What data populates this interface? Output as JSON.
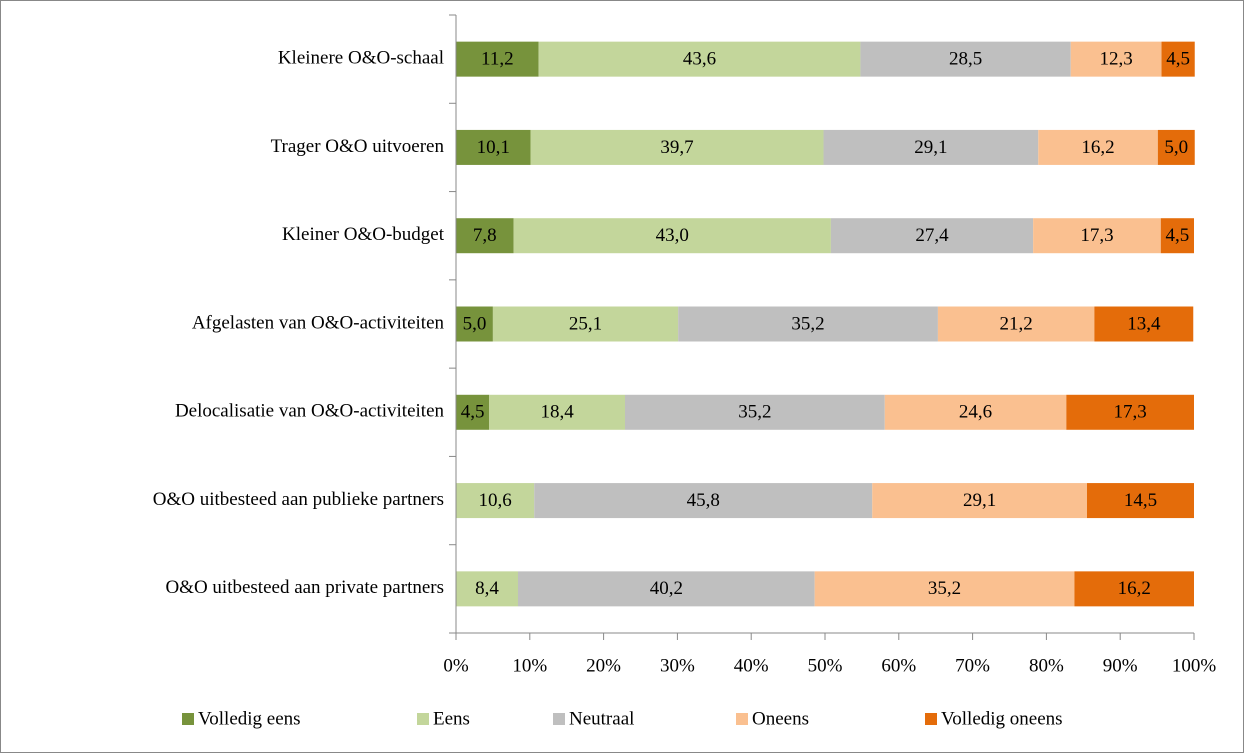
{
  "chart_data": {
    "type": "stacked_bar_horizontal",
    "categories": [
      "Kleinere O&O-schaal",
      "Trager O&O uitvoeren",
      "Kleiner O&O-budget",
      "Afgelasten van O&O-activiteiten",
      "Delocalisatie van O&O-activiteiten",
      "O&O uitbesteed aan publieke partners",
      "O&O uitbesteed aan private partners"
    ],
    "series": [
      {
        "name": "Volledig eens",
        "color": "#77933c",
        "values": [
          11.2,
          10.1,
          7.8,
          5.0,
          4.5,
          null,
          null
        ],
        "value_labels": [
          "11,2",
          "10,1",
          "7,8",
          "5,0",
          "4,5",
          null,
          null
        ]
      },
      {
        "name": "Eens",
        "color": "#c3d69b",
        "values": [
          43.6,
          39.7,
          43.0,
          25.1,
          18.4,
          10.6,
          8.4
        ],
        "value_labels": [
          "43,6",
          "39,7",
          "43,0",
          "25,1",
          "18,4",
          "10,6",
          "8,4"
        ]
      },
      {
        "name": "Neutraal",
        "color": "#bfbfbf",
        "values": [
          28.5,
          29.1,
          27.4,
          35.2,
          35.2,
          45.8,
          40.2
        ],
        "value_labels": [
          "28,5",
          "29,1",
          "27,4",
          "35,2",
          "35,2",
          "45,8",
          "40,2"
        ]
      },
      {
        "name": "Oneens",
        "color": "#fac090",
        "values": [
          12.3,
          16.2,
          17.3,
          21.2,
          24.6,
          29.1,
          35.2
        ],
        "value_labels": [
          "12,3",
          "16,2",
          "17,3",
          "21,2",
          "24,6",
          "29,1",
          "35,2"
        ]
      },
      {
        "name": "Volledig oneens",
        "color": "#e46c0a",
        "values": [
          4.5,
          5.0,
          4.5,
          13.4,
          17.3,
          14.5,
          16.2
        ],
        "value_labels": [
          "4,5",
          "5,0",
          "4,5",
          "13,4",
          "17,3",
          "14,5",
          "16,2"
        ]
      }
    ],
    "xlim": [
      0,
      100
    ],
    "xticks": [
      {
        "value": 0,
        "label": "0%"
      },
      {
        "value": 10,
        "label": "10%"
      },
      {
        "value": 20,
        "label": "20%"
      },
      {
        "value": 30,
        "label": "30%"
      },
      {
        "value": 40,
        "label": "40%"
      },
      {
        "value": 50,
        "label": "50%"
      },
      {
        "value": 60,
        "label": "60%"
      },
      {
        "value": 70,
        "label": "70%"
      },
      {
        "value": 80,
        "label": "80%"
      },
      {
        "value": 90,
        "label": "90%"
      },
      {
        "value": 100,
        "label": "100%"
      }
    ],
    "legend": "bottom"
  }
}
